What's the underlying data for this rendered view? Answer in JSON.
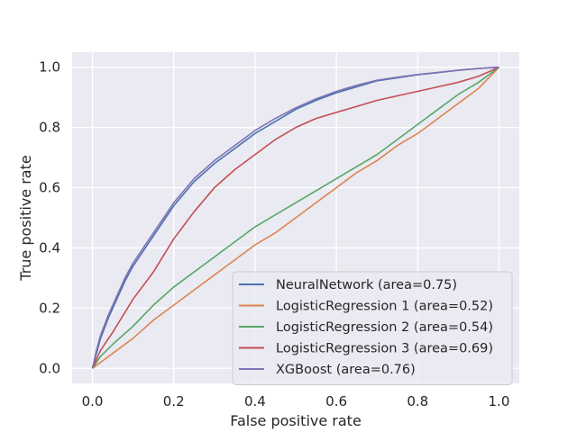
{
  "chart_data": {
    "type": "line",
    "title": "",
    "xlabel": "False positive rate",
    "ylabel": "True positive rate",
    "xlim": [
      -0.05,
      1.05
    ],
    "ylim": [
      -0.05,
      1.05
    ],
    "xticks": [
      0.0,
      0.2,
      0.4,
      0.6,
      0.8,
      1.0
    ],
    "yticks": [
      0.0,
      0.2,
      0.4,
      0.6,
      0.8,
      1.0
    ],
    "xtick_labels": [
      "0.0",
      "0.2",
      "0.4",
      "0.6",
      "0.8",
      "1.0"
    ],
    "ytick_labels": [
      "0.0",
      "0.2",
      "0.4",
      "0.6",
      "0.8",
      "1.0"
    ],
    "grid": true,
    "background": "#eaeaf2",
    "legend_position": "lower-right",
    "series": [
      {
        "name": "NeuralNetwork (area=0.75)",
        "color": "#4c72b0",
        "x": [
          0.0,
          0.01,
          0.02,
          0.04,
          0.06,
          0.08,
          0.1,
          0.12,
          0.15,
          0.18,
          0.2,
          0.25,
          0.3,
          0.35,
          0.4,
          0.45,
          0.5,
          0.55,
          0.6,
          0.65,
          0.7,
          0.75,
          0.8,
          0.85,
          0.9,
          0.95,
          1.0
        ],
        "y": [
          0.0,
          0.05,
          0.1,
          0.17,
          0.23,
          0.29,
          0.34,
          0.38,
          0.44,
          0.5,
          0.54,
          0.62,
          0.68,
          0.73,
          0.78,
          0.82,
          0.86,
          0.89,
          0.915,
          0.935,
          0.955,
          0.965,
          0.975,
          0.982,
          0.99,
          0.996,
          1.0
        ]
      },
      {
        "name": "LogisticRegression 1 (area=0.52)",
        "color": "#dd8452",
        "x": [
          0.0,
          0.02,
          0.05,
          0.1,
          0.15,
          0.2,
          0.25,
          0.3,
          0.35,
          0.4,
          0.45,
          0.5,
          0.55,
          0.6,
          0.65,
          0.7,
          0.75,
          0.8,
          0.85,
          0.9,
          0.95,
          1.0
        ],
        "y": [
          0.0,
          0.02,
          0.05,
          0.1,
          0.16,
          0.21,
          0.26,
          0.31,
          0.36,
          0.41,
          0.45,
          0.5,
          0.55,
          0.6,
          0.65,
          0.69,
          0.74,
          0.78,
          0.83,
          0.88,
          0.93,
          1.0
        ]
      },
      {
        "name": "LogisticRegression 2 (area=0.54)",
        "color": "#55a868",
        "x": [
          0.0,
          0.02,
          0.05,
          0.1,
          0.15,
          0.2,
          0.25,
          0.3,
          0.35,
          0.4,
          0.45,
          0.5,
          0.55,
          0.6,
          0.65,
          0.7,
          0.75,
          0.8,
          0.85,
          0.9,
          0.95,
          1.0
        ],
        "y": [
          0.0,
          0.04,
          0.08,
          0.14,
          0.21,
          0.27,
          0.32,
          0.37,
          0.42,
          0.47,
          0.51,
          0.55,
          0.59,
          0.63,
          0.67,
          0.71,
          0.76,
          0.81,
          0.86,
          0.91,
          0.95,
          1.0
        ]
      },
      {
        "name": "LogisticRegression 3 (area=0.69)",
        "color": "#c44e52",
        "x": [
          0.0,
          0.02,
          0.05,
          0.1,
          0.15,
          0.2,
          0.25,
          0.3,
          0.35,
          0.4,
          0.45,
          0.5,
          0.55,
          0.6,
          0.65,
          0.7,
          0.75,
          0.8,
          0.85,
          0.9,
          0.95,
          1.0
        ],
        "y": [
          0.0,
          0.06,
          0.12,
          0.23,
          0.32,
          0.43,
          0.52,
          0.6,
          0.66,
          0.71,
          0.76,
          0.8,
          0.83,
          0.85,
          0.87,
          0.89,
          0.905,
          0.92,
          0.935,
          0.95,
          0.97,
          1.0
        ]
      },
      {
        "name": "XGBoost (area=0.76)",
        "color": "#8172b3",
        "x": [
          0.0,
          0.01,
          0.02,
          0.04,
          0.06,
          0.08,
          0.1,
          0.12,
          0.15,
          0.18,
          0.2,
          0.25,
          0.3,
          0.35,
          0.4,
          0.45,
          0.5,
          0.55,
          0.6,
          0.65,
          0.7,
          0.75,
          0.8,
          0.85,
          0.9,
          0.95,
          1.0
        ],
        "y": [
          0.0,
          0.06,
          0.11,
          0.18,
          0.24,
          0.3,
          0.35,
          0.39,
          0.45,
          0.51,
          0.55,
          0.63,
          0.69,
          0.74,
          0.79,
          0.83,
          0.865,
          0.895,
          0.92,
          0.94,
          0.957,
          0.967,
          0.976,
          0.983,
          0.99,
          0.996,
          1.0
        ]
      }
    ]
  }
}
